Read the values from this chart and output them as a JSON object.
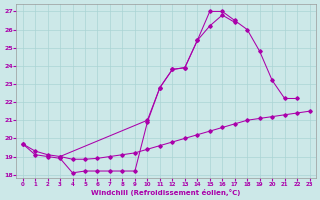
{
  "xlabel": "Windchill (Refroidissement éolien,°C)",
  "bg_color": "#cce8e8",
  "grid_color": "#aad4d4",
  "line_color": "#aa00aa",
  "xlim": [
    -0.5,
    23.5
  ],
  "ylim": [
    17.8,
    27.4
  ],
  "yticks": [
    18,
    19,
    20,
    21,
    22,
    23,
    24,
    25,
    26,
    27
  ],
  "xticks": [
    0,
    1,
    2,
    3,
    4,
    5,
    6,
    7,
    8,
    9,
    10,
    11,
    12,
    13,
    14,
    15,
    16,
    17,
    18,
    19,
    20,
    21,
    22,
    23
  ],
  "line1": {
    "x": [
      0,
      1,
      2,
      3,
      4,
      5,
      6,
      7,
      8,
      9,
      10,
      11,
      12,
      13,
      14,
      15,
      16,
      17,
      18,
      19,
      20,
      21,
      22
    ],
    "y": [
      19.7,
      19.1,
      19.0,
      18.9,
      18.1,
      18.2,
      18.2,
      18.2,
      18.2,
      18.2,
      20.9,
      22.8,
      23.8,
      23.9,
      25.4,
      27.0,
      27.0,
      26.5,
      26.0,
      24.8,
      23.2,
      22.2,
      22.2
    ]
  },
  "line2": {
    "x": [
      3,
      10,
      11,
      12,
      13,
      14,
      15,
      16,
      17
    ],
    "y": [
      19.0,
      21.0,
      22.8,
      23.8,
      23.9,
      25.4,
      26.2,
      26.8,
      26.4
    ]
  },
  "line3": {
    "x": [
      0,
      1,
      2,
      3,
      4,
      5,
      6,
      7,
      8,
      9,
      10,
      11,
      12,
      13,
      14,
      15,
      16,
      17,
      18,
      19,
      20,
      21,
      22,
      23
    ],
    "y": [
      19.7,
      19.3,
      19.1,
      19.0,
      18.85,
      18.85,
      18.9,
      19.0,
      19.1,
      19.2,
      19.4,
      19.6,
      19.8,
      20.0,
      20.2,
      20.4,
      20.6,
      20.8,
      21.0,
      21.1,
      21.2,
      21.3,
      21.4,
      21.5
    ]
  }
}
